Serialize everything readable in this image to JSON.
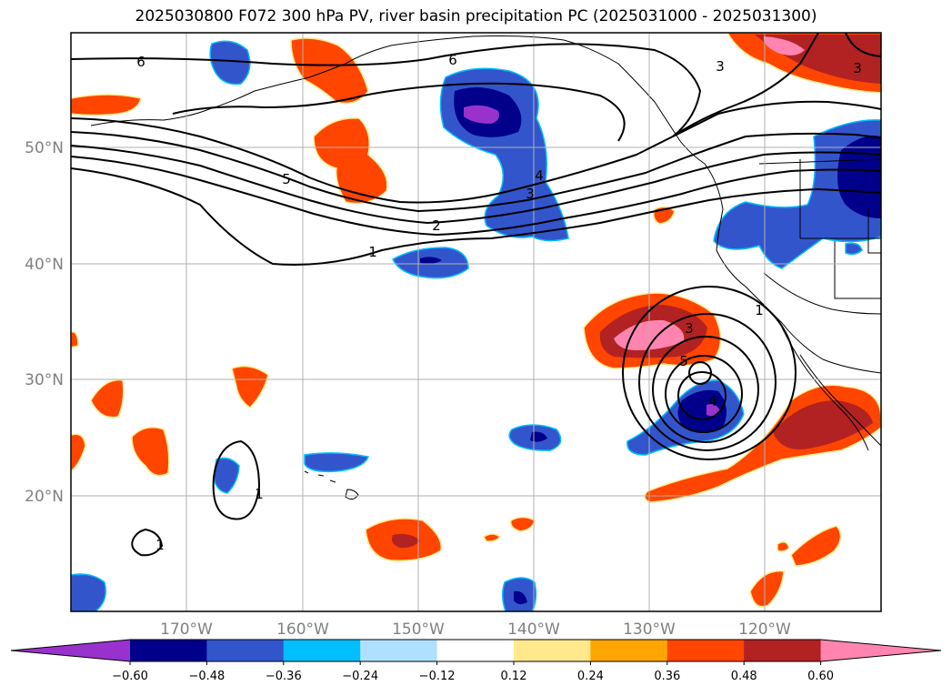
{
  "title": "2025030800 F072 300 hPa PV, river basin precipitation PC (2025031000 - 2025031300)",
  "map": {
    "lon_ticks": [
      "170°W",
      "160°W",
      "150°W",
      "140°W",
      "130°W",
      "120°W"
    ],
    "lat_ticks": [
      "50°N",
      "40°N",
      "30°N",
      "20°N"
    ],
    "gridlines": true,
    "pv_contour_labels": [
      "1",
      "2",
      "3",
      "4",
      "5",
      "6",
      "6",
      "3",
      "3",
      "3",
      "4",
      "5",
      "1",
      "1",
      "1"
    ]
  },
  "colorbar": {
    "ticks": [
      "−0.60",
      "−0.48",
      "−0.36",
      "−0.24",
      "−0.12",
      "0.12",
      "0.24",
      "0.36",
      "0.48",
      "0.60"
    ],
    "colors": [
      "#9932cc",
      "#00008b",
      "#3355cc",
      "#00bfff",
      "#b0e0ff",
      "#ffffff",
      "#ffe98c",
      "#ffa500",
      "#ff4500",
      "#b22222",
      "#ff85b0"
    ]
  },
  "colors": {
    "neg_strong": "#00008b",
    "neg_mid": "#3355cc",
    "neg_light": "#00bfff",
    "neg_extreme": "#9932cc",
    "pos_mid": "#ff4500",
    "pos_strong": "#b22222",
    "pos_extreme": "#ff85b0",
    "pos_light": "#ffa500"
  }
}
